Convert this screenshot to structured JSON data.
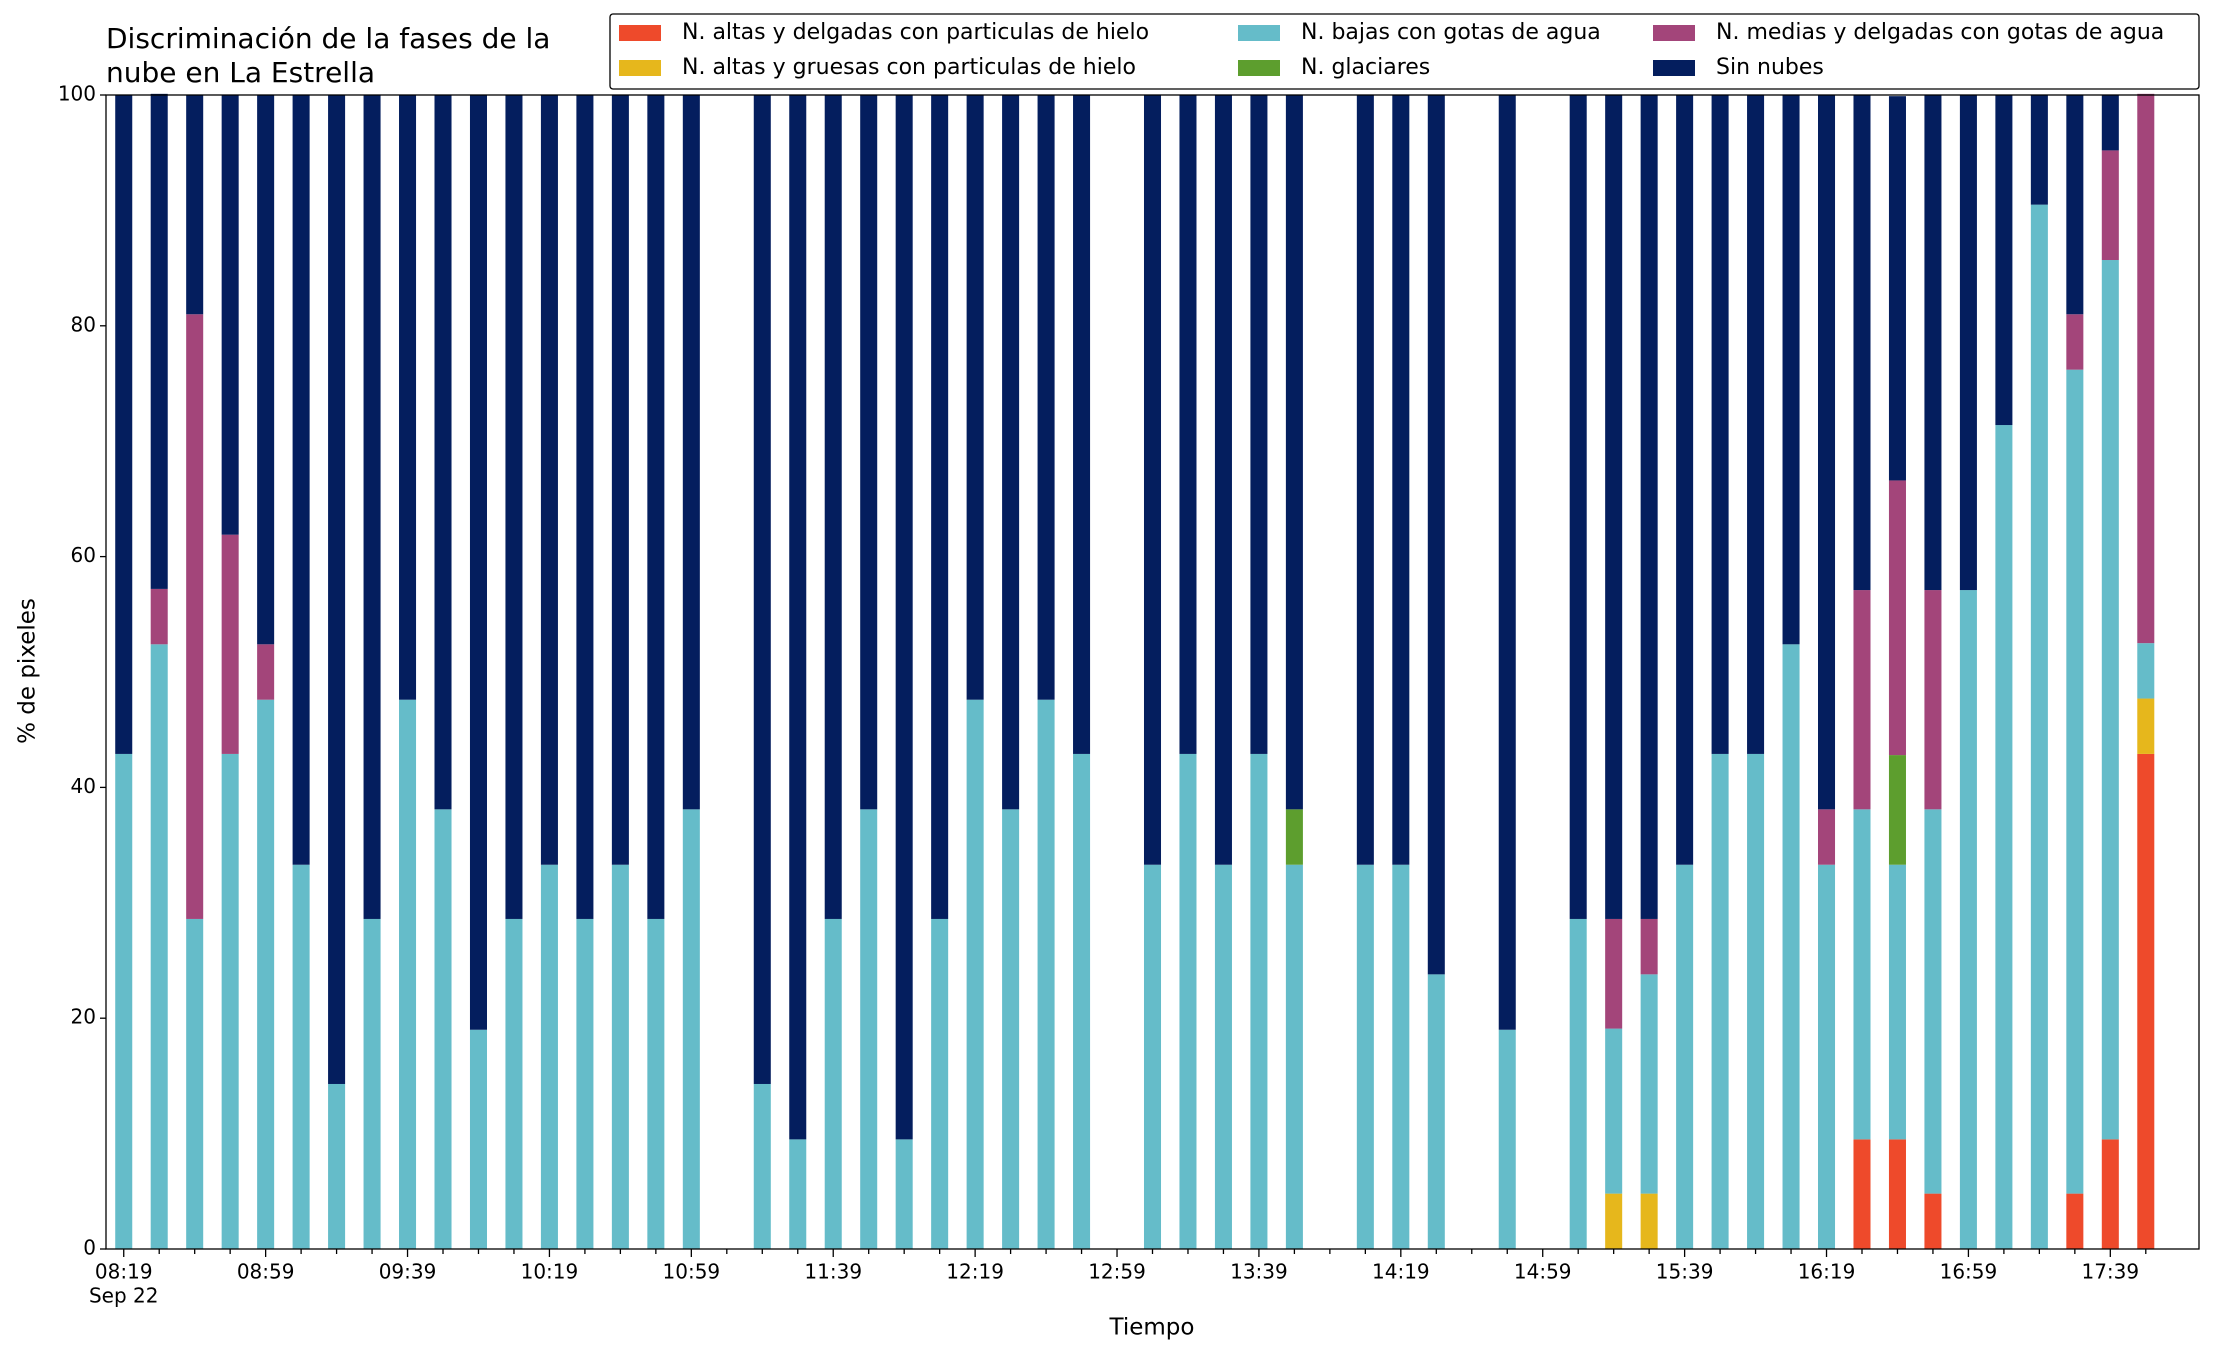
{
  "chart_data": {
    "type": "stacked_bar",
    "title": [
      "Discriminación de la fases de la",
      "nube en La Estrella"
    ],
    "xlabel": "Tiempo",
    "ylabel": "% de pixeles",
    "x_date_label": "Sep 22",
    "categories": [
      "08:19",
      null,
      null,
      null,
      "08:59",
      null,
      null,
      null,
      "09:39",
      null,
      null,
      null,
      "10:19",
      null,
      null,
      null,
      "10:59",
      null,
      null,
      null,
      "11:39",
      null,
      null,
      null,
      "12:19",
      null,
      null,
      null,
      "12:59",
      null,
      null,
      null,
      "13:39",
      null,
      null,
      null,
      "14:19",
      null,
      null,
      null,
      "14:59",
      null,
      null,
      null,
      "15:39",
      null,
      null,
      null,
      "16:19",
      null,
      null,
      null,
      "16:59",
      null,
      null,
      null,
      "17:39",
      null
    ],
    "ylim": [
      0,
      100
    ],
    "yticks": [
      0,
      20,
      40,
      60,
      80,
      100
    ],
    "legend": "top-right",
    "series": [
      {
        "name": "N. altas y delgadas con particulas de hielo",
        "color": "#ee4a2b",
        "values": [
          0,
          0,
          0,
          0,
          0,
          0,
          0,
          0,
          0,
          0,
          0,
          0,
          0,
          0,
          0,
          0,
          0,
          null,
          0,
          0,
          0,
          0,
          0,
          0,
          0,
          0,
          0,
          0,
          null,
          0,
          0,
          0,
          0,
          0,
          null,
          0,
          0,
          0,
          null,
          0,
          null,
          0,
          0,
          0,
          0,
          0,
          0,
          0,
          0,
          9.5,
          9.5,
          4.8,
          0,
          0,
          0,
          4.8,
          9.5,
          42.9
        ]
      },
      {
        "name": "N. altas y gruesas con particulas de hielo",
        "color": "#e6b71c",
        "values": [
          0,
          0,
          0,
          0,
          0,
          0,
          0,
          0,
          0,
          0,
          0,
          0,
          0,
          0,
          0,
          0,
          0,
          null,
          0,
          0,
          0,
          0,
          0,
          0,
          0,
          0,
          0,
          0,
          null,
          0,
          0,
          0,
          0,
          0,
          null,
          0,
          0,
          0,
          null,
          0,
          null,
          0,
          4.8,
          4.8,
          0,
          0,
          0,
          0,
          0,
          0,
          0,
          0,
          0,
          0,
          0,
          0,
          0,
          4.8
        ]
      },
      {
        "name": "N. bajas con gotas de agua",
        "color": "#65bcc9",
        "values": [
          42.9,
          52.4,
          28.6,
          42.9,
          47.6,
          33.3,
          14.3,
          28.6,
          47.6,
          38.1,
          19.0,
          28.6,
          33.3,
          28.6,
          33.3,
          28.6,
          38.1,
          null,
          14.3,
          9.5,
          28.6,
          38.1,
          9.5,
          28.6,
          47.6,
          38.1,
          47.6,
          42.9,
          null,
          33.3,
          42.9,
          33.3,
          42.9,
          33.3,
          null,
          33.3,
          33.3,
          23.8,
          null,
          19.0,
          null,
          28.6,
          14.3,
          19.0,
          33.3,
          42.9,
          42.9,
          52.4,
          33.3,
          28.6,
          23.8,
          33.3,
          57.1,
          71.4,
          90.5,
          71.4,
          76.2,
          4.8
        ]
      },
      {
        "name": "N. glaciares",
        "color": "#5d9e2e",
        "values": [
          0,
          0,
          0,
          0,
          0,
          0,
          0,
          0,
          0,
          0,
          0,
          0,
          0,
          0,
          0,
          0,
          0,
          null,
          0,
          0,
          0,
          0,
          0,
          0,
          0,
          0,
          0,
          0,
          null,
          0,
          0,
          0,
          0,
          4.8,
          null,
          0,
          0,
          0,
          null,
          0,
          null,
          0,
          0,
          0,
          0,
          0,
          0,
          0,
          0,
          0,
          9.5,
          0,
          0,
          0,
          0,
          0,
          0,
          0
        ]
      },
      {
        "name": "N. medias y delgadas con gotas de agua",
        "color": "#a3457a",
        "values": [
          0,
          4.8,
          52.4,
          19.0,
          4.8,
          0,
          0,
          0,
          0,
          0,
          0,
          0,
          0,
          0,
          0,
          0,
          0,
          null,
          0,
          0,
          0,
          0,
          0,
          0,
          0,
          0,
          0,
          0,
          null,
          0,
          0,
          0,
          0,
          0,
          null,
          0,
          0,
          0,
          null,
          0,
          null,
          0,
          9.5,
          4.8,
          0,
          0,
          0,
          0,
          4.8,
          19.0,
          23.8,
          19.0,
          0,
          0,
          0,
          4.8,
          9.5,
          47.6
        ]
      },
      {
        "name": "Sin nubes",
        "color": "#041e5e",
        "values": [
          57.1,
          42.9,
          19.0,
          38.1,
          47.6,
          66.7,
          85.7,
          71.4,
          52.4,
          61.9,
          81.0,
          71.4,
          66.7,
          71.4,
          66.7,
          71.4,
          61.9,
          null,
          85.7,
          90.5,
          71.4,
          61.9,
          90.5,
          71.4,
          52.4,
          61.9,
          52.4,
          57.1,
          null,
          66.7,
          57.1,
          66.7,
          57.1,
          61.9,
          null,
          66.7,
          66.7,
          76.2,
          null,
          81.0,
          null,
          71.4,
          71.4,
          71.4,
          66.7,
          57.1,
          57.1,
          47.6,
          61.9,
          42.9,
          33.3,
          42.9,
          42.9,
          28.6,
          9.5,
          19.0,
          4.8,
          0
        ]
      }
    ]
  }
}
